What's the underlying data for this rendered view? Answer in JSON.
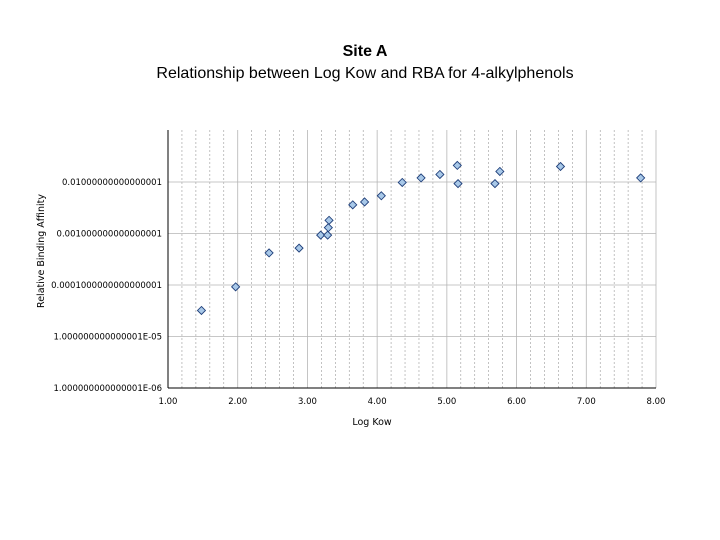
{
  "chart_data": {
    "type": "scatter",
    "title": "Site A",
    "subtitle": "Relationship between Log Kow and RBA for 4-alkylphenols",
    "xlabel": "Log Kow",
    "ylabel": "Relative Binding Affinity",
    "x_scale": "linear",
    "y_scale": "log",
    "xlim": [
      1,
      8
    ],
    "ylim": [
      1e-06,
      0.1
    ],
    "x_ticks": [
      "1.00",
      "2.00",
      "3.00",
      "4.00",
      "5.00",
      "6.00",
      "7.00",
      "8.00"
    ],
    "y_ticks": [
      "1.000000000000001E-06",
      "1.000000000000001E-05",
      "0.0001000000000000001",
      "0.001000000000000001",
      "0.01000000000000001"
    ],
    "grid": {
      "x_major": true,
      "x_minor": true,
      "y_major": true
    },
    "marker": {
      "shape": "diamond",
      "fill": "#a8c8e8",
      "stroke": "#1f3f7a"
    },
    "series": [
      {
        "points": [
          {
            "x": 1.48,
            "y": 3.2e-05
          },
          {
            "x": 1.97,
            "y": 9.2e-05
          },
          {
            "x": 2.45,
            "y": 0.00042
          },
          {
            "x": 2.88,
            "y": 0.00052
          },
          {
            "x": 3.19,
            "y": 0.00093
          },
          {
            "x": 3.29,
            "y": 0.00093
          },
          {
            "x": 3.3,
            "y": 0.0013
          },
          {
            "x": 3.31,
            "y": 0.0018
          },
          {
            "x": 3.65,
            "y": 0.0036
          },
          {
            "x": 3.82,
            "y": 0.0041
          },
          {
            "x": 4.06,
            "y": 0.0054
          },
          {
            "x": 4.36,
            "y": 0.0098
          },
          {
            "x": 4.63,
            "y": 0.012
          },
          {
            "x": 4.9,
            "y": 0.014
          },
          {
            "x": 5.15,
            "y": 0.021
          },
          {
            "x": 5.16,
            "y": 0.0093
          },
          {
            "x": 5.69,
            "y": 0.0093
          },
          {
            "x": 5.76,
            "y": 0.016
          },
          {
            "x": 6.63,
            "y": 0.02
          },
          {
            "x": 7.78,
            "y": 0.012
          }
        ]
      }
    ]
  }
}
